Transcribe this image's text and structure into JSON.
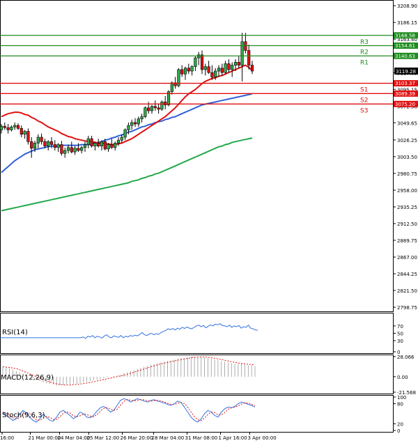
{
  "chart_data": {
    "type": "candlestick",
    "instrument_note": "",
    "price_axis": {
      "ticks": [
        "3208.90",
        "3186.15",
        "3163.40",
        "3140.63",
        "3117.85",
        "3095.15",
        "3072.38",
        "3049.65",
        "3026.25",
        "3003.50",
        "2980.75",
        "2958.00",
        "2935.25",
        "2912.50",
        "2889.75",
        "2867.00",
        "2844.25",
        "2821.50",
        "2798.75"
      ],
      "range": [
        2795,
        3211
      ]
    },
    "time_axis": {
      "labels": [
        "16:00",
        "21 Mar 00:00",
        "24 Mar 04:00",
        "25 Mar 12:00",
        "26 Mar 20:00",
        "28 Mar 04:00",
        "31 Mar 08:00",
        "1 Apr 16:00",
        "3 Apr 00:00"
      ],
      "positions": [
        0,
        13.5,
        27.5,
        41.5,
        57.5,
        72.5,
        88.5,
        104.5,
        118.5
      ]
    },
    "current_price": "3119.28",
    "levels": [
      {
        "name": "R3",
        "value": 3168.58,
        "label": "3168.58",
        "color": "#1e8c1e"
      },
      {
        "name": "R2",
        "value": 3154.61,
        "label": "3154.61",
        "color": "#1e8c1e"
      },
      {
        "name": "R1",
        "value": 3140.63,
        "label": "3140.63",
        "color": "#1e8c1e"
      },
      {
        "name": "S1",
        "value": 3103.37,
        "label": "3103.37",
        "color": "#e01010"
      },
      {
        "name": "S2",
        "value": 3089.39,
        "label": "3089.39",
        "color": "#e01010"
      },
      {
        "name": "S3",
        "value": 3075.2,
        "label": "3075.20",
        "color": "#e01010"
      }
    ],
    "candles": [
      [
        3040,
        3048,
        3035,
        3045
      ],
      [
        3045,
        3050,
        3040,
        3043
      ],
      [
        3043,
        3048,
        3035,
        3040
      ],
      [
        3040,
        3046,
        3038,
        3044
      ],
      [
        3044,
        3050,
        3040,
        3046
      ],
      [
        3046,
        3049,
        3040,
        3042
      ],
      [
        3042,
        3046,
        3030,
        3034
      ],
      [
        3034,
        3040,
        3028,
        3038
      ],
      [
        3038,
        3042,
        3020,
        3024
      ],
      [
        3024,
        3030,
        3002,
        3015
      ],
      [
        3015,
        3025,
        3010,
        3022
      ],
      [
        3022,
        3034,
        3015,
        3030
      ],
      [
        3030,
        3035,
        3020,
        3024
      ],
      [
        3024,
        3028,
        3015,
        3018
      ],
      [
        3018,
        3026,
        3012,
        3024
      ],
      [
        3024,
        3030,
        3015,
        3020
      ],
      [
        3020,
        3026,
        3012,
        3016
      ],
      [
        3016,
        3022,
        3010,
        3020
      ],
      [
        3020,
        3025,
        3005,
        3008
      ],
      [
        3008,
        3016,
        3002,
        3012
      ],
      [
        3012,
        3020,
        3008,
        3016
      ],
      [
        3016,
        3024,
        3008,
        3010
      ],
      [
        3010,
        3018,
        3006,
        3015
      ],
      [
        3015,
        3022,
        3010,
        3012
      ],
      [
        3012,
        3018,
        3008,
        3016
      ],
      [
        3016,
        3024,
        3010,
        3020
      ],
      [
        3020,
        3032,
        3015,
        3028
      ],
      [
        3028,
        3032,
        3016,
        3018
      ],
      [
        3018,
        3024,
        3012,
        3022
      ],
      [
        3022,
        3028,
        3016,
        3018
      ],
      [
        3018,
        3026,
        3012,
        3024
      ],
      [
        3024,
        3028,
        3012,
        3014
      ],
      [
        3014,
        3022,
        3010,
        3020
      ],
      [
        3020,
        3028,
        3014,
        3016
      ],
      [
        3016,
        3024,
        3012,
        3022
      ],
      [
        3022,
        3030,
        3018,
        3026
      ],
      [
        3026,
        3034,
        3022,
        3030
      ],
      [
        3030,
        3042,
        3026,
        3040
      ],
      [
        3040,
        3050,
        3034,
        3046
      ],
      [
        3046,
        3054,
        3040,
        3050
      ],
      [
        3050,
        3056,
        3044,
        3048
      ],
      [
        3048,
        3058,
        3044,
        3055
      ],
      [
        3055,
        3062,
        3050,
        3058
      ],
      [
        3058,
        3072,
        3056,
        3070
      ],
      [
        3070,
        3078,
        3062,
        3066
      ],
      [
        3066,
        3074,
        3062,
        3072
      ],
      [
        3072,
        3080,
        3066,
        3070
      ],
      [
        3070,
        3076,
        3062,
        3068
      ],
      [
        3068,
        3080,
        3066,
        3078
      ],
      [
        3078,
        3086,
        3068,
        3074
      ],
      [
        3074,
        3094,
        3072,
        3092
      ],
      [
        3092,
        3106,
        3088,
        3104
      ],
      [
        3104,
        3112,
        3096,
        3100
      ],
      [
        3100,
        3124,
        3098,
        3122
      ],
      [
        3122,
        3128,
        3112,
        3116
      ],
      [
        3116,
        3126,
        3108,
        3124
      ],
      [
        3124,
        3130,
        3116,
        3120
      ],
      [
        3120,
        3128,
        3114,
        3126
      ],
      [
        3126,
        3140,
        3120,
        3138
      ],
      [
        3138,
        3146,
        3128,
        3142
      ],
      [
        3142,
        3148,
        3116,
        3122
      ],
      [
        3122,
        3130,
        3114,
        3126
      ],
      [
        3126,
        3134,
        3116,
        3118
      ],
      [
        3118,
        3128,
        3108,
        3112
      ],
      [
        3112,
        3124,
        3108,
        3120
      ],
      [
        3120,
        3128,
        3112,
        3124
      ],
      [
        3124,
        3130,
        3114,
        3118
      ],
      [
        3118,
        3134,
        3116,
        3130
      ],
      [
        3130,
        3136,
        3118,
        3122
      ],
      [
        3122,
        3132,
        3112,
        3128
      ],
      [
        3128,
        3136,
        3120,
        3132
      ],
      [
        3132,
        3140,
        3124,
        3128
      ],
      [
        3128,
        3172,
        3106,
        3160
      ],
      [
        3160,
        3172,
        3144,
        3148
      ],
      [
        3148,
        3156,
        3122,
        3128
      ],
      [
        3128,
        3134,
        3116,
        3120
      ]
    ],
    "ma_red": [
      3058,
      3060,
      3062,
      3063,
      3064,
      3064,
      3063,
      3061,
      3060,
      3057,
      3055,
      3052,
      3050,
      3047,
      3044,
      3042,
      3040,
      3038,
      3035,
      3033,
      3031,
      3030,
      3028,
      3027,
      3026,
      3025,
      3024,
      3024,
      3023,
      3022,
      3022,
      3021,
      3021,
      3020,
      3020,
      3021,
      3022,
      3024,
      3026,
      3028,
      3031,
      3034,
      3037,
      3040,
      3043,
      3046,
      3049,
      3052,
      3055,
      3058,
      3062,
      3066,
      3070,
      3075,
      3080,
      3085,
      3089,
      3092,
      3095,
      3099,
      3103,
      3106,
      3108,
      3110,
      3111,
      3113,
      3114,
      3116,
      3118,
      3120,
      3122,
      3124,
      3126,
      3128,
      3125,
      3121
    ],
    "ma_blue": [
      2982,
      2986,
      2990,
      2994,
      2998,
      3001,
      3004,
      3007,
      3009,
      3011,
      3013,
      3014,
      3015,
      3016,
      3017,
      3018,
      3018,
      3018,
      3019,
      3019,
      3019,
      3019,
      3019,
      3019,
      3020,
      3020,
      3020,
      3021,
      3022,
      3023,
      3024,
      3026,
      3027,
      3029,
      3030,
      3032,
      3033,
      3035,
      3037,
      3038,
      3040,
      3042,
      3044,
      3045,
      3047,
      3048,
      3050,
      3051,
      3052,
      3054,
      3055,
      3057,
      3058,
      3060,
      3062,
      3064,
      3066,
      3068,
      3070,
      3072,
      3074,
      3075,
      3076,
      3077,
      3078,
      3079,
      3080,
      3081,
      3082,
      3083,
      3084,
      3085,
      3086,
      3087,
      3088,
      3089
    ],
    "ma_green": [
      2930,
      2931,
      2932,
      2933,
      2934,
      2935,
      2936,
      2937,
      2938,
      2939,
      2940,
      2941,
      2942,
      2943,
      2944,
      2945,
      2946,
      2947,
      2948,
      2949,
      2950,
      2951,
      2952,
      2953,
      2954,
      2955,
      2956,
      2957,
      2958,
      2959,
      2960,
      2961,
      2962,
      2963,
      2964,
      2965,
      2966,
      2967,
      2968,
      2970,
      2971,
      2972,
      2974,
      2975,
      2977,
      2978,
      2980,
      2981,
      2983,
      2985,
      2987,
      2989,
      2991,
      2993,
      2995,
      2997,
      2999,
      3001,
      3003,
      3005,
      3007,
      3009,
      3011,
      3013,
      3015,
      3017,
      3018,
      3020,
      3021,
      3023,
      3024,
      3025,
      3026,
      3027,
      3028,
      3029
    ],
    "rsi": {
      "label": "RSI(14)",
      "levels": [
        "70",
        "50",
        "30",
        "0"
      ],
      "values": [
        38,
        40,
        36,
        42,
        40,
        44,
        38,
        42,
        40,
        37,
        43,
        46,
        40,
        38,
        43,
        41,
        39,
        44,
        38,
        42,
        40,
        44,
        42,
        45,
        43,
        47,
        52,
        46,
        44,
        48,
        50,
        46,
        49,
        47,
        52,
        55,
        58,
        62,
        60,
        63,
        59,
        64,
        61,
        66,
        63,
        67,
        64,
        62,
        66,
        70,
        72,
        68,
        71,
        65,
        69,
        73,
        70,
        75,
        73,
        76,
        71,
        70,
        68,
        72,
        66,
        70,
        68,
        71,
        64,
        68,
        66,
        72,
        64,
        62,
        59,
        58
      ]
    },
    "macd": {
      "label": "MACD(12,26,9)",
      "levels": [
        "28.066",
        "0.00",
        "-21.568"
      ],
      "values": [
        14,
        13,
        12,
        10,
        8,
        6,
        4,
        2,
        0,
        -2,
        -4,
        -6,
        -8,
        -9,
        -10,
        -11,
        -12,
        -12,
        -12,
        -11,
        -11,
        -10,
        -10,
        -9,
        -8,
        -7,
        -6,
        -5,
        -4,
        -3,
        -2,
        -1,
        0,
        1,
        2,
        3,
        5,
        6,
        8,
        9,
        11,
        12,
        14,
        15,
        17,
        18,
        19,
        20,
        21,
        22,
        23,
        24,
        25,
        26,
        26,
        27,
        28,
        28,
        28,
        27,
        27,
        26,
        25,
        24,
        23,
        22,
        21,
        20,
        19,
        18,
        18,
        18,
        17,
        16,
        16,
        15
      ]
    },
    "stoch": {
      "label": "Stoch(9,6,3)",
      "levels": [
        "100",
        "80",
        "20",
        "0"
      ],
      "values": [
        55,
        45,
        38,
        30,
        35,
        48,
        60,
        52,
        40,
        30,
        25,
        35,
        48,
        40,
        30,
        28,
        40,
        55,
        60,
        52,
        45,
        35,
        42,
        55,
        50,
        40,
        38,
        45,
        58,
        68,
        72,
        65,
        55,
        60,
        75,
        90,
        95,
        92,
        85,
        90,
        95,
        92,
        88,
        85,
        90,
        92,
        88,
        85,
        82,
        78,
        75,
        80,
        88,
        84,
        70,
        55,
        40,
        30,
        25,
        35,
        50,
        60,
        55,
        45,
        40,
        55,
        65,
        70,
        68,
        72,
        80,
        85,
        82,
        78,
        75,
        70
      ]
    }
  }
}
